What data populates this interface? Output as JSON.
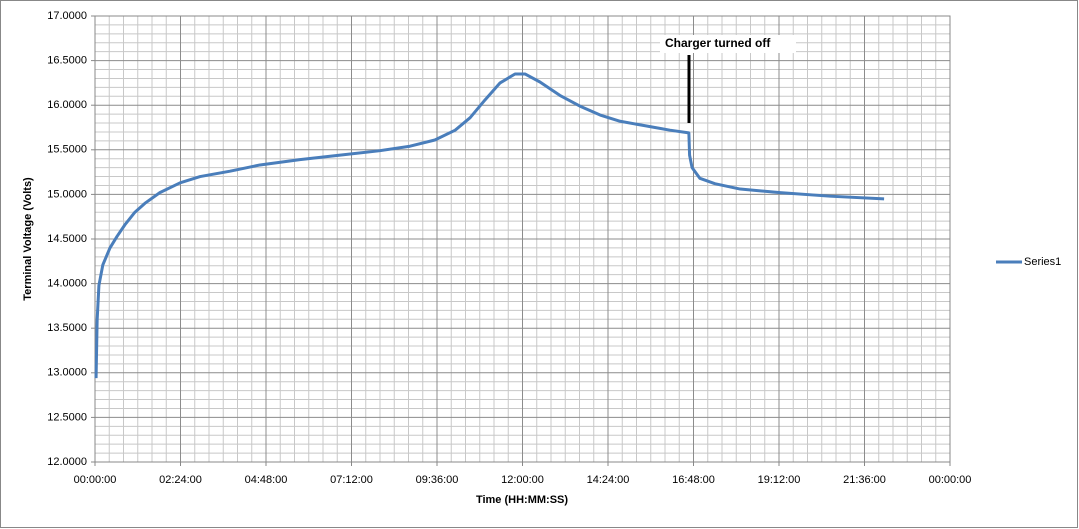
{
  "chart_data": {
    "type": "line",
    "x_label": "Time (HH:MM:SS)",
    "y_label": "Terminal Voltage  (Volts)",
    "annotation": "Charger turned off",
    "x": [
      0.03,
      0.06,
      0.11,
      0.22,
      0.42,
      0.62,
      0.84,
      1.12,
      1.4,
      1.82,
      2.39,
      2.95,
      3.79,
      4.63,
      5.75,
      6.88,
      8.0,
      8.84,
      9.54,
      10.11,
      10.53,
      10.95,
      11.37,
      11.79,
      12.07,
      12.49,
      13.05,
      13.61,
      14.18,
      14.74,
      15.58,
      16.14,
      16.67,
      16.69,
      16.76,
      16.98,
      17.4,
      18.11,
      19.23,
      20.63,
      22.15
    ],
    "series": [
      {
        "name": "Series1",
        "color": "#4a7ebb",
        "values": [
          12.94,
          13.59,
          13.98,
          14.21,
          14.4,
          14.53,
          14.66,
          14.8,
          14.9,
          15.02,
          15.13,
          15.2,
          15.26,
          15.33,
          15.39,
          15.44,
          15.49,
          15.54,
          15.61,
          15.72,
          15.86,
          16.06,
          16.25,
          16.35,
          16.35,
          16.26,
          16.11,
          15.99,
          15.89,
          15.82,
          15.76,
          15.72,
          15.69,
          15.44,
          15.3,
          15.18,
          15.12,
          15.06,
          15.02,
          14.98,
          14.95
        ]
      }
    ],
    "xlim": [
      0,
      24
    ],
    "xticks": [
      {
        "value": 0,
        "label": "00:00:00"
      },
      {
        "value": 2.4,
        "label": "02:24:00"
      },
      {
        "value": 4.8,
        "label": "04:48:00"
      },
      {
        "value": 7.2,
        "label": "07:12:00"
      },
      {
        "value": 9.6,
        "label": "09:36:00"
      },
      {
        "value": 12,
        "label": "12:00:00"
      },
      {
        "value": 14.4,
        "label": "14:24:00"
      },
      {
        "value": 16.8,
        "label": "16:48:00"
      },
      {
        "value": 19.2,
        "label": "19:12:00"
      },
      {
        "value": 21.6,
        "label": "21:36:00"
      },
      {
        "value": 24,
        "label": "00:00:00"
      }
    ],
    "ylim": [
      12,
      17
    ],
    "yticks": [
      {
        "value": 12,
        "label": "12.0000"
      },
      {
        "value": 12.5,
        "label": "12.5000"
      },
      {
        "value": 13,
        "label": "13.0000"
      },
      {
        "value": 13.5,
        "label": "13.5000"
      },
      {
        "value": 14,
        "label": "14.0000"
      },
      {
        "value": 14.5,
        "label": "14.5000"
      },
      {
        "value": 15,
        "label": "15.0000"
      },
      {
        "value": 15.5,
        "label": "15.5000"
      },
      {
        "value": 16,
        "label": "16.0000"
      },
      {
        "value": 16.5,
        "label": "16.5000"
      },
      {
        "value": 17,
        "label": "17.0000"
      }
    ],
    "grid": true,
    "minor_grid": true,
    "legend": "right"
  }
}
